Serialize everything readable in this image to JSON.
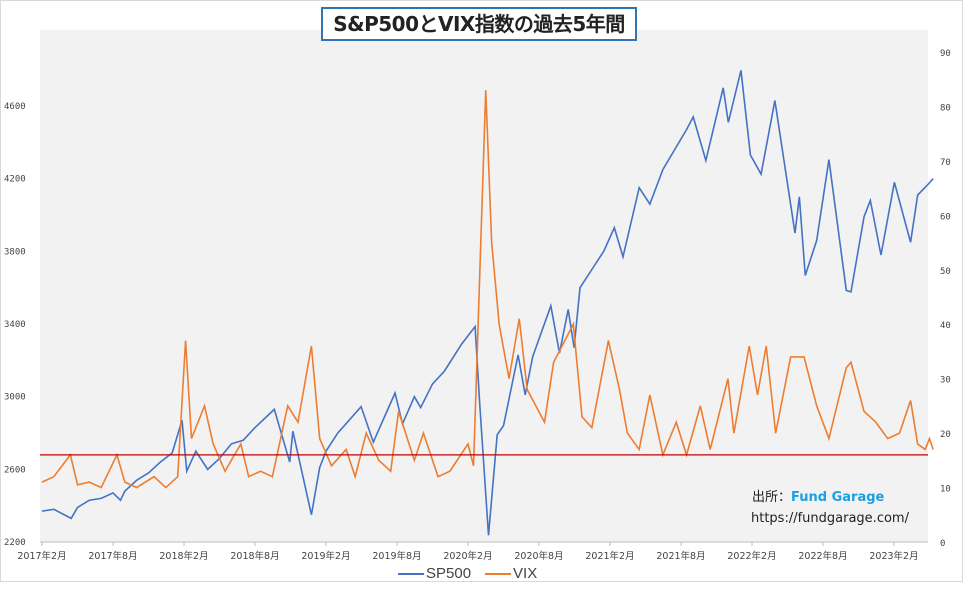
{
  "chart_data": {
    "type": "line",
    "title": "S&P500とVIX指数の過去5年間",
    "x_ticks": [
      "2017年2月",
      "2017年8月",
      "2018年2月",
      "2018年8月",
      "2019年2月",
      "2019年8月",
      "2020年2月",
      "2020年8月",
      "2021年2月",
      "2021年8月",
      "2022年2月",
      "2022年8月",
      "2023年2月"
    ],
    "y_left": {
      "ticks": [
        2200,
        2600,
        3000,
        3400,
        3800,
        4200,
        4600
      ],
      "range": [
        2200,
        4800
      ]
    },
    "y_right": {
      "ticks": [
        0,
        10,
        20,
        30,
        40,
        50,
        60,
        70,
        80,
        90
      ],
      "range": [
        0,
        90
      ]
    },
    "reference_line": {
      "axis": "right",
      "value": 16,
      "color": "#c00000"
    },
    "legend_position": "bottom",
    "series": [
      {
        "name": "SP500",
        "axis": "left",
        "color": "#4472c4",
        "points": [
          [
            "2017-02-01",
            2370
          ],
          [
            "2017-03-01",
            2380
          ],
          [
            "2017-04-15",
            2330
          ],
          [
            "2017-05-01",
            2390
          ],
          [
            "2017-06-01",
            2430
          ],
          [
            "2017-07-01",
            2440
          ],
          [
            "2017-08-01",
            2470
          ],
          [
            "2017-08-20",
            2430
          ],
          [
            "2017-09-01",
            2480
          ],
          [
            "2017-10-01",
            2540
          ],
          [
            "2017-11-01",
            2580
          ],
          [
            "2017-12-01",
            2640
          ],
          [
            "2018-01-01",
            2690
          ],
          [
            "2018-01-26",
            2870
          ],
          [
            "2018-02-08",
            2590
          ],
          [
            "2018-03-01",
            2700
          ],
          [
            "2018-04-01",
            2600
          ],
          [
            "2018-05-01",
            2660
          ],
          [
            "2018-06-01",
            2740
          ],
          [
            "2018-07-01",
            2760
          ],
          [
            "2018-08-01",
            2830
          ],
          [
            "2018-09-20",
            2930
          ],
          [
            "2018-10-29",
            2640
          ],
          [
            "2018-11-07",
            2810
          ],
          [
            "2018-12-24",
            2350
          ],
          [
            "2019-01-15",
            2610
          ],
          [
            "2019-02-01",
            2700
          ],
          [
            "2019-03-01",
            2800
          ],
          [
            "2019-04-30",
            2945
          ],
          [
            "2019-06-01",
            2750
          ],
          [
            "2019-07-26",
            3020
          ],
          [
            "2019-08-15",
            2850
          ],
          [
            "2019-09-15",
            3000
          ],
          [
            "2019-10-01",
            2940
          ],
          [
            "2019-11-01",
            3070
          ],
          [
            "2019-12-01",
            3140
          ],
          [
            "2020-01-15",
            3290
          ],
          [
            "2020-02-19",
            3386
          ],
          [
            "2020-03-01",
            2950
          ],
          [
            "2020-03-23",
            2237
          ],
          [
            "2020-04-15",
            2790
          ],
          [
            "2020-05-01",
            2840
          ],
          [
            "2020-06-08",
            3230
          ],
          [
            "2020-06-26",
            3010
          ],
          [
            "2020-07-15",
            3220
          ],
          [
            "2020-08-31",
            3500
          ],
          [
            "2020-09-23",
            3240
          ],
          [
            "2020-10-15",
            3480
          ],
          [
            "2020-10-30",
            3270
          ],
          [
            "2020-11-15",
            3600
          ],
          [
            "2020-12-15",
            3700
          ],
          [
            "2021-01-15",
            3800
          ],
          [
            "2021-02-12",
            3930
          ],
          [
            "2021-03-04",
            3770
          ],
          [
            "2021-04-15",
            4150
          ],
          [
            "2021-05-12",
            4060
          ],
          [
            "2021-06-15",
            4250
          ],
          [
            "2021-07-15",
            4360
          ],
          [
            "2021-08-15",
            4470
          ],
          [
            "2021-09-02",
            4540
          ],
          [
            "2021-10-04",
            4300
          ],
          [
            "2021-11-18",
            4700
          ],
          [
            "2021-12-01",
            4510
          ],
          [
            "2022-01-03",
            4796
          ],
          [
            "2022-01-27",
            4330
          ],
          [
            "2022-02-24",
            4225
          ],
          [
            "2022-03-29",
            4630
          ],
          [
            "2022-05-20",
            3900
          ],
          [
            "2022-06-01",
            4100
          ],
          [
            "2022-06-16",
            3667
          ],
          [
            "2022-07-15",
            3860
          ],
          [
            "2022-08-16",
            4305
          ],
          [
            "2022-09-30",
            3585
          ],
          [
            "2022-10-12",
            3577
          ],
          [
            "2022-11-15",
            3990
          ],
          [
            "2022-12-01",
            4080
          ],
          [
            "2022-12-28",
            3780
          ],
          [
            "2023-02-02",
            4180
          ],
          [
            "2023-03-13",
            3850
          ],
          [
            "2023-04-01",
            4110
          ],
          [
            "2023-04-28",
            4170
          ],
          [
            "2023-05-10",
            4200
          ]
        ]
      },
      {
        "name": "VIX",
        "axis": "right",
        "color": "#ed7d31",
        "points": [
          [
            "2017-02-01",
            11
          ],
          [
            "2017-03-01",
            12
          ],
          [
            "2017-04-13",
            16
          ],
          [
            "2017-05-01",
            10.5
          ],
          [
            "2017-06-01",
            11
          ],
          [
            "2017-07-01",
            10
          ],
          [
            "2017-08-11",
            16
          ],
          [
            "2017-09-01",
            11
          ],
          [
            "2017-10-01",
            10
          ],
          [
            "2017-11-15",
            12
          ],
          [
            "2017-12-15",
            10
          ],
          [
            "2018-01-15",
            12
          ],
          [
            "2018-02-05",
            37
          ],
          [
            "2018-02-20",
            19
          ],
          [
            "2018-03-23",
            25
          ],
          [
            "2018-04-15",
            18
          ],
          [
            "2018-05-15",
            13
          ],
          [
            "2018-06-25",
            18
          ],
          [
            "2018-07-15",
            12
          ],
          [
            "2018-08-15",
            13
          ],
          [
            "2018-09-15",
            12
          ],
          [
            "2018-10-24",
            25
          ],
          [
            "2018-11-20",
            22
          ],
          [
            "2018-12-24",
            36
          ],
          [
            "2019-01-15",
            19
          ],
          [
            "2019-02-15",
            14
          ],
          [
            "2019-03-22",
            17
          ],
          [
            "2019-04-15",
            12
          ],
          [
            "2019-05-13",
            20
          ],
          [
            "2019-06-15",
            15
          ],
          [
            "2019-07-15",
            13
          ],
          [
            "2019-08-05",
            24
          ],
          [
            "2019-09-15",
            15
          ],
          [
            "2019-10-08",
            20
          ],
          [
            "2019-11-15",
            12
          ],
          [
            "2019-12-15",
            13
          ],
          [
            "2020-01-31",
            18
          ],
          [
            "2020-02-15",
            14
          ],
          [
            "2020-03-16",
            83
          ],
          [
            "2020-04-01",
            55
          ],
          [
            "2020-04-20",
            40
          ],
          [
            "2020-05-15",
            30
          ],
          [
            "2020-06-11",
            41
          ],
          [
            "2020-07-01",
            28
          ],
          [
            "2020-08-15",
            22
          ],
          [
            "2020-09-08",
            33
          ],
          [
            "2020-10-28",
            40
          ],
          [
            "2020-11-20",
            23
          ],
          [
            "2020-12-15",
            21
          ],
          [
            "2021-01-27",
            37
          ],
          [
            "2021-02-25",
            28
          ],
          [
            "2021-03-15",
            20
          ],
          [
            "2021-04-15",
            17
          ],
          [
            "2021-05-12",
            27
          ],
          [
            "2021-06-15",
            16
          ],
          [
            "2021-07-19",
            22
          ],
          [
            "2021-08-15",
            16
          ],
          [
            "2021-09-20",
            25
          ],
          [
            "2021-10-15",
            17
          ],
          [
            "2021-11-30",
            30
          ],
          [
            "2021-12-15",
            20
          ],
          [
            "2022-01-24",
            36
          ],
          [
            "2022-02-15",
            27
          ],
          [
            "2022-03-07",
            36
          ],
          [
            "2022-04-01",
            20
          ],
          [
            "2022-05-09",
            34
          ],
          [
            "2022-06-13",
            34
          ],
          [
            "2022-07-15",
            25
          ],
          [
            "2022-08-16",
            19
          ],
          [
            "2022-09-30",
            32
          ],
          [
            "2022-10-12",
            33
          ],
          [
            "2022-11-15",
            24
          ],
          [
            "2022-12-15",
            22
          ],
          [
            "2023-01-15",
            19
          ],
          [
            "2023-02-15",
            20
          ],
          [
            "2023-03-13",
            26
          ],
          [
            "2023-04-01",
            18
          ],
          [
            "2023-04-20",
            17
          ],
          [
            "2023-05-01",
            19
          ],
          [
            "2023-05-10",
            17
          ]
        ]
      }
    ]
  },
  "source": {
    "label": "出所：",
    "brand": "Fund Garage",
    "url": "https://fundgarage.com/"
  }
}
